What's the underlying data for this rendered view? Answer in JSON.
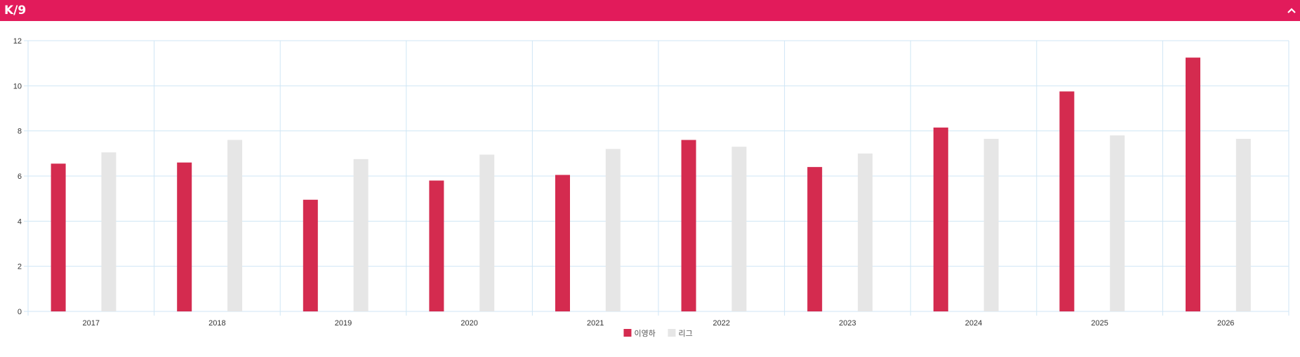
{
  "panel": {
    "title": "K/9",
    "collapse_icon": "chevron-up-icon",
    "header_color": "#e21b5b"
  },
  "chart_data": {
    "type": "bar",
    "title": "",
    "xlabel": "",
    "ylabel": "",
    "categories": [
      "2017",
      "2018",
      "2019",
      "2020",
      "2021",
      "2022",
      "2023",
      "2024",
      "2025",
      "2026"
    ],
    "series": [
      {
        "name": "이영하",
        "color": "#d42b4f",
        "values": [
          6.55,
          6.6,
          4.95,
          5.8,
          6.05,
          7.6,
          6.4,
          8.15,
          9.75,
          11.25
        ]
      },
      {
        "name": "리그",
        "color": "#e6e6e6",
        "values": [
          7.05,
          7.6,
          6.75,
          6.95,
          7.2,
          7.3,
          7.0,
          7.65,
          7.8,
          7.65
        ]
      }
    ],
    "ylim": [
      0,
      12
    ],
    "yticks": [
      0,
      2,
      4,
      6,
      8,
      10,
      12
    ],
    "grid": true,
    "grid_color": "#cfe6f5",
    "legend": "bottom-center"
  }
}
